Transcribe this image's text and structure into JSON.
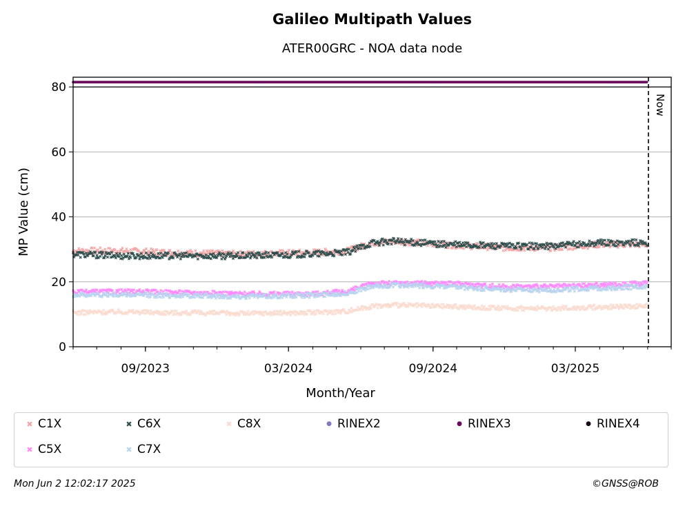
{
  "chart_data": {
    "type": "scatter",
    "title": "Galileo Multipath Values",
    "subtitle": "ATER00GRC - NOA data node",
    "xlabel": "Month/Year",
    "ylabel": "MP Value (cm)",
    "ylim": [
      0,
      80
    ],
    "yticks": [
      0,
      20,
      40,
      60,
      80
    ],
    "xlim": [
      "2023-06-01",
      "2025-07-01"
    ],
    "xticks": [
      {
        "date": "2023-09-01",
        "label": "09/2023"
      },
      {
        "date": "2024-03-01",
        "label": "03/2024"
      },
      {
        "date": "2024-09-01",
        "label": "09/2024"
      },
      {
        "date": "2025-03-01",
        "label": "03/2025"
      }
    ],
    "now_marker": {
      "date": "2025-06-02",
      "label": "Now"
    },
    "grid": "horizontal",
    "legend_position": "bottom",
    "series": [
      {
        "name": "C1X",
        "color": "#f4a6a6",
        "marker": "x",
        "points": [
          [
            "2023-06-01",
            29.5
          ],
          [
            "2023-08-01",
            29.5
          ],
          [
            "2023-10-01",
            29.0
          ],
          [
            "2024-01-01",
            28.5
          ],
          [
            "2024-04-01",
            29.0
          ],
          [
            "2024-05-15",
            29.5
          ],
          [
            "2024-06-15",
            32.0
          ],
          [
            "2024-07-15",
            32.5
          ],
          [
            "2024-09-15",
            31.5
          ],
          [
            "2024-12-01",
            30.5
          ],
          [
            "2025-02-01",
            30.5
          ],
          [
            "2025-04-01",
            31.5
          ],
          [
            "2025-06-01",
            31.5
          ]
        ]
      },
      {
        "name": "C6X",
        "color": "#2f4f4f",
        "marker": "x",
        "points": [
          [
            "2023-06-01",
            28.5
          ],
          [
            "2023-08-01",
            28.0
          ],
          [
            "2023-10-01",
            28.0
          ],
          [
            "2024-01-01",
            28.0
          ],
          [
            "2024-04-01",
            28.5
          ],
          [
            "2024-05-15",
            29.0
          ],
          [
            "2024-06-15",
            32.0
          ],
          [
            "2024-07-15",
            32.5
          ],
          [
            "2024-09-15",
            31.5
          ],
          [
            "2024-12-01",
            31.0
          ],
          [
            "2025-02-01",
            31.0
          ],
          [
            "2025-04-01",
            32.0
          ],
          [
            "2025-06-01",
            32.0
          ]
        ]
      },
      {
        "name": "C8X",
        "color": "#fadbd0",
        "marker": "x",
        "points": [
          [
            "2023-06-01",
            10.5
          ],
          [
            "2023-08-01",
            10.8
          ],
          [
            "2023-10-01",
            10.5
          ],
          [
            "2024-01-01",
            10.3
          ],
          [
            "2024-04-01",
            10.5
          ],
          [
            "2024-05-15",
            11.0
          ],
          [
            "2024-06-15",
            12.5
          ],
          [
            "2024-07-15",
            12.8
          ],
          [
            "2024-09-15",
            12.5
          ],
          [
            "2024-12-01",
            11.8
          ],
          [
            "2025-02-01",
            11.8
          ],
          [
            "2025-04-01",
            12.2
          ],
          [
            "2025-06-01",
            12.5
          ]
        ]
      },
      {
        "name": "RINEX2",
        "color": "#8878c4",
        "marker": "o",
        "points": []
      },
      {
        "name": "RINEX3",
        "color": "#6a0a5e",
        "marker": "o",
        "points": [
          [
            "2023-06-01",
            81.5
          ],
          [
            "2025-06-01",
            81.5
          ]
        ]
      },
      {
        "name": "RINEX4",
        "color": "#1a0a1a",
        "marker": "o",
        "points": []
      },
      {
        "name": "C5X",
        "color": "#ff88ff",
        "marker": "x",
        "points": [
          [
            "2023-06-01",
            16.8
          ],
          [
            "2023-08-01",
            17.0
          ],
          [
            "2023-10-01",
            16.8
          ],
          [
            "2024-01-01",
            16.3
          ],
          [
            "2024-04-01",
            16.3
          ],
          [
            "2024-05-15",
            17.0
          ],
          [
            "2024-06-15",
            19.5
          ],
          [
            "2024-07-15",
            19.5
          ],
          [
            "2024-09-15",
            19.5
          ],
          [
            "2024-12-01",
            18.5
          ],
          [
            "2025-02-01",
            18.5
          ],
          [
            "2025-04-01",
            19.0
          ],
          [
            "2025-06-01",
            19.5
          ]
        ]
      },
      {
        "name": "C7X",
        "color": "#b8d4ee",
        "marker": "x",
        "points": [
          [
            "2023-06-01",
            16.0
          ],
          [
            "2023-08-01",
            16.0
          ],
          [
            "2023-10-01",
            15.8
          ],
          [
            "2024-01-01",
            15.5
          ],
          [
            "2024-04-01",
            15.8
          ],
          [
            "2024-05-15",
            16.5
          ],
          [
            "2024-06-15",
            18.5
          ],
          [
            "2024-07-15",
            19.0
          ],
          [
            "2024-09-15",
            18.5
          ],
          [
            "2024-12-01",
            17.5
          ],
          [
            "2025-02-01",
            17.5
          ],
          [
            "2025-04-01",
            18.0
          ],
          [
            "2025-06-01",
            18.5
          ]
        ]
      }
    ]
  },
  "footer": {
    "timestamp": "Mon Jun  2 12:02:17 2025",
    "credit": "©GNSS@ROB"
  }
}
